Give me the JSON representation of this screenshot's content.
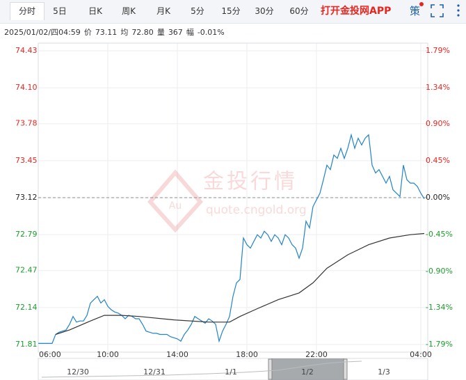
{
  "tabs": [
    "分时",
    "5日",
    "日K",
    "周K",
    "月K",
    "5分",
    "15分",
    "30分",
    "60分"
  ],
  "promo": "打开金投网APP",
  "strategy": "策",
  "info": {
    "timestamp": "2025/01/02/四04:59",
    "items": [
      {
        "label": "价",
        "value": "73.11"
      },
      {
        "label": "均",
        "value": "72.80"
      },
      {
        "label": "量",
        "value": "367"
      },
      {
        "label": "幅",
        "value": "-0.01%"
      }
    ]
  },
  "watermark": {
    "title": "金投行情",
    "url": "quote.cngold.org"
  },
  "navigator": {
    "labels": [
      "12/30",
      "12/31",
      "1/1",
      "1/2",
      "1/3"
    ]
  },
  "chart_data": {
    "type": "line",
    "xlim": [
      0,
      22.4
    ],
    "xticks": [
      {
        "value": 0,
        "label": "06:00"
      },
      {
        "value": 4,
        "label": "10:00"
      },
      {
        "value": 8,
        "label": "14:00"
      },
      {
        "value": 12,
        "label": "18:00"
      },
      {
        "value": 16,
        "label": "22:00"
      },
      {
        "value": 22,
        "label": "04:00"
      }
    ],
    "ylim": [
      71.81,
      74.43
    ],
    "yticks": [
      74.43,
      {
        "value": 74.1,
        "label": "74.10"
      },
      73.78,
      73.45,
      73.12,
      72.79,
      72.47,
      72.14,
      71.81
    ],
    "y2lim": [
      -1.79,
      1.79
    ],
    "y2ticks": [
      {
        "value": 1.79,
        "label": "1.79%"
      },
      {
        "value": 1.34,
        "label": "1.34%"
      },
      {
        "value": 0.9,
        "label": "0.90%"
      },
      {
        "value": 0.45,
        "label": "0.45%"
      },
      {
        "value": 0,
        "label": "0.00%"
      },
      {
        "value": -0.45,
        "label": "-0.45%"
      },
      {
        "value": -0.9,
        "label": "-0.90%"
      },
      {
        "value": -1.34,
        "label": "-1.34%"
      },
      {
        "value": -1.79,
        "label": "-1.79%"
      }
    ],
    "baseline": 73.12,
    "up_color": "#e8251f",
    "down_color": "#1b9d2c",
    "grid": true,
    "series": [
      {
        "color": "#2183c9",
        "x": [
          0,
          0.2,
          0.4,
          0.6,
          0.8,
          1.0,
          1.2,
          1.4,
          1.6,
          1.8,
          2.0,
          2.2,
          2.4,
          2.6,
          2.8,
          3.0,
          3.2,
          3.4,
          3.6,
          3.8,
          4.0,
          4.2,
          4.4,
          4.6,
          4.8,
          5.0,
          5.2,
          5.4,
          5.6,
          5.8,
          6.0,
          6.2,
          6.4,
          6.6,
          6.8,
          7.0,
          7.2,
          7.4,
          7.6,
          7.8,
          8.0,
          8.2,
          8.4,
          8.6,
          8.8,
          9.0,
          9.2,
          9.4,
          9.6,
          9.8,
          10.0,
          10.2,
          10.4,
          10.6,
          10.8,
          11.0,
          11.2,
          11.4,
          11.6,
          11.8,
          12.0,
          12.2,
          12.4,
          12.6,
          12.8,
          13.0,
          13.2,
          13.4,
          13.6,
          13.8,
          14.0,
          14.2,
          14.4,
          14.6,
          14.8,
          15.0,
          15.2,
          15.4,
          15.6,
          15.8,
          16.0,
          16.2,
          16.4,
          16.6,
          16.8,
          17.0,
          17.2,
          17.4,
          17.6,
          17.8,
          18.0,
          18.2,
          18.4,
          18.6,
          18.8,
          19.0,
          19.2,
          19.4,
          19.6,
          19.8,
          20.0,
          20.2,
          20.4,
          20.6,
          20.8,
          21.0,
          21.2,
          21.4,
          21.6,
          21.8,
          22.0,
          22.2
        ],
        "values": [
          71.82,
          71.82,
          71.82,
          71.82,
          71.82,
          71.9,
          71.92,
          71.93,
          71.94,
          71.99,
          72.06,
          72.01,
          72.02,
          72.02,
          72.07,
          72.18,
          72.21,
          72.24,
          72.18,
          72.21,
          72.15,
          72.12,
          72.1,
          72.09,
          72.07,
          72.04,
          72.07,
          72.06,
          72.04,
          72.04,
          71.99,
          71.93,
          71.92,
          71.91,
          71.91,
          71.9,
          71.9,
          71.9,
          71.88,
          71.87,
          71.86,
          71.84,
          71.9,
          71.94,
          71.99,
          72.06,
          72.04,
          72.02,
          72.0,
          72.04,
          72.02,
          71.99,
          71.84,
          71.93,
          71.99,
          72.06,
          72.24,
          72.36,
          72.39,
          72.76,
          72.7,
          72.67,
          72.73,
          72.79,
          72.76,
          72.82,
          72.79,
          72.73,
          72.79,
          72.76,
          72.7,
          72.79,
          72.76,
          72.7,
          72.67,
          72.58,
          72.67,
          72.91,
          72.85,
          73.04,
          73.1,
          73.16,
          73.28,
          73.41,
          73.37,
          73.5,
          73.47,
          73.56,
          73.47,
          73.56,
          73.68,
          73.56,
          73.65,
          73.59,
          73.65,
          73.68,
          73.41,
          73.34,
          73.37,
          73.31,
          73.25,
          73.31,
          73.19,
          73.16,
          73.13,
          73.41,
          73.28,
          73.25,
          73.25,
          73.22,
          73.16,
          73.11
        ]
      },
      {
        "color": "#333333",
        "x": [
          1.0,
          1.8,
          3.0,
          3.8,
          4.8,
          5.8,
          7.8,
          9.8,
          11.0,
          11.6,
          12.6,
          13.8,
          15.0,
          15.8,
          16.6,
          17.8,
          19.0,
          20.2,
          21.4,
          22.2
        ],
        "values": [
          71.9,
          71.94,
          72.02,
          72.07,
          72.07,
          72.06,
          72.03,
          72.01,
          72.01,
          72.06,
          72.13,
          72.21,
          72.27,
          72.36,
          72.49,
          72.61,
          72.7,
          72.76,
          72.79,
          72.8
        ]
      }
    ]
  }
}
